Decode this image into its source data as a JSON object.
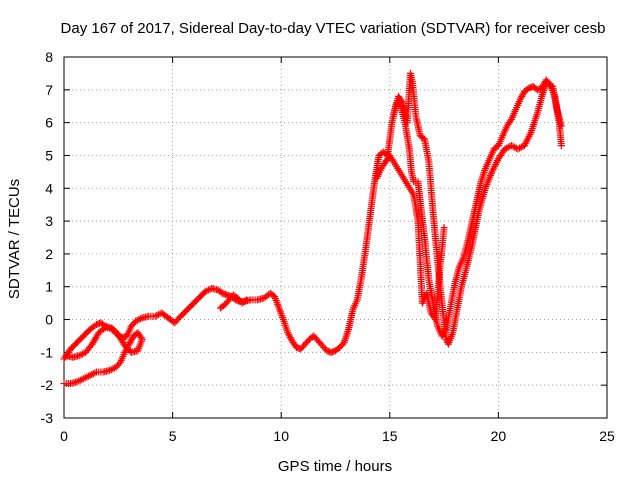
{
  "chart_data": {
    "type": "scatter",
    "title": "Day 167 of 2017, Sidereal Day-to-day VTEC variation (SDTVAR) for receiver cesb",
    "xlabel": "GPS time / hours",
    "ylabel": "SDTVAR / TECUs",
    "xlim": [
      0,
      25
    ],
    "ylim": [
      -3,
      8
    ],
    "xticks": [
      "0",
      "5",
      "10",
      "15",
      "20",
      "25"
    ],
    "yticks": [
      "-3",
      "-2",
      "-1",
      "0",
      "1",
      "2",
      "3",
      "4",
      "5",
      "6",
      "7",
      "8"
    ],
    "grid": true,
    "marker": "+",
    "color": "#ff0000",
    "series": [
      {
        "points": [
          [
            0.0,
            -1.2
          ],
          [
            0.3,
            -0.9
          ],
          [
            0.6,
            -0.7
          ],
          [
            0.9,
            -0.5
          ],
          [
            1.2,
            -0.3
          ],
          [
            1.5,
            -0.15
          ],
          [
            1.7,
            -0.1
          ],
          [
            1.9,
            -0.2
          ],
          [
            2.1,
            -0.25
          ],
          [
            2.3,
            -0.35
          ],
          [
            2.5,
            -0.5
          ],
          [
            2.7,
            -0.55
          ],
          [
            2.9,
            -0.5
          ],
          [
            3.1,
            -0.2
          ],
          [
            3.3,
            -0.05
          ],
          [
            3.6,
            0.05
          ],
          [
            3.9,
            0.1
          ],
          [
            4.2,
            0.1
          ],
          [
            4.5,
            0.2
          ],
          [
            4.7,
            0.1
          ],
          [
            4.9,
            0.0
          ],
          [
            5.1,
            -0.1
          ],
          [
            5.3,
            0.05
          ],
          [
            5.6,
            0.25
          ],
          [
            5.9,
            0.45
          ],
          [
            6.2,
            0.65
          ],
          [
            6.5,
            0.85
          ],
          [
            6.8,
            0.95
          ],
          [
            7.1,
            0.9
          ],
          [
            7.3,
            0.8
          ],
          [
            7.5,
            0.75
          ],
          [
            7.7,
            0.7
          ],
          [
            7.9,
            0.6
          ],
          [
            8.1,
            0.55
          ],
          [
            8.3,
            0.55
          ],
          [
            8.6,
            0.6
          ],
          [
            8.9,
            0.6
          ],
          [
            9.2,
            0.65
          ],
          [
            9.5,
            0.8
          ],
          [
            9.7,
            0.7
          ],
          [
            9.9,
            0.35
          ],
          [
            10.1,
            0.0
          ],
          [
            10.3,
            -0.4
          ],
          [
            10.5,
            -0.65
          ],
          [
            10.7,
            -0.85
          ],
          [
            10.9,
            -0.9
          ],
          [
            11.1,
            -0.75
          ],
          [
            11.3,
            -0.6
          ],
          [
            11.5,
            -0.5
          ],
          [
            11.7,
            -0.65
          ],
          [
            11.9,
            -0.8
          ],
          [
            12.1,
            -0.95
          ],
          [
            12.3,
            -1.0
          ],
          [
            12.5,
            -0.95
          ],
          [
            12.7,
            -0.85
          ],
          [
            12.9,
            -0.7
          ],
          [
            13.1,
            -0.3
          ],
          [
            13.3,
            0.3
          ],
          [
            13.5,
            0.6
          ],
          [
            13.7,
            1.3
          ],
          [
            13.9,
            2.2
          ],
          [
            14.1,
            3.2
          ],
          [
            14.3,
            4.2
          ],
          [
            14.5,
            5.0
          ],
          [
            14.7,
            5.1
          ],
          [
            14.9,
            5.0
          ],
          [
            15.1,
            6.0
          ],
          [
            15.3,
            6.6
          ],
          [
            15.5,
            6.5
          ],
          [
            15.7,
            6.0
          ],
          [
            15.9,
            5.2
          ],
          [
            16.0,
            4.5
          ],
          [
            16.1,
            4.2
          ],
          [
            16.3,
            4.2
          ],
          [
            16.4,
            3.6
          ],
          [
            16.6,
            2.5
          ],
          [
            16.8,
            1.2
          ],
          [
            17.0,
            0.5
          ],
          [
            17.2,
            -0.2
          ],
          [
            17.4,
            -0.5
          ],
          [
            17.6,
            -0.3
          ],
          [
            17.8,
            0.4
          ],
          [
            18.0,
            1.1
          ],
          [
            18.2,
            1.6
          ],
          [
            18.4,
            1.9
          ],
          [
            18.6,
            2.4
          ],
          [
            18.8,
            3.0
          ],
          [
            19.0,
            3.6
          ],
          [
            19.2,
            4.2
          ],
          [
            19.4,
            4.6
          ],
          [
            19.6,
            4.9
          ],
          [
            19.8,
            5.2
          ],
          [
            20.0,
            5.3
          ],
          [
            20.2,
            5.6
          ],
          [
            20.4,
            5.9
          ],
          [
            20.6,
            6.1
          ],
          [
            20.8,
            6.4
          ],
          [
            21.0,
            6.7
          ],
          [
            21.2,
            6.95
          ],
          [
            21.4,
            7.05
          ],
          [
            21.6,
            7.1
          ],
          [
            21.8,
            7.0
          ],
          [
            22.0,
            7.05
          ],
          [
            22.2,
            7.3
          ],
          [
            22.4,
            7.15
          ],
          [
            22.6,
            6.8
          ],
          [
            22.8,
            6.0
          ],
          [
            22.9,
            5.3
          ]
        ]
      },
      {
        "points": [
          [
            0.0,
            -1.95
          ],
          [
            0.3,
            -1.95
          ],
          [
            0.6,
            -1.9
          ],
          [
            0.9,
            -1.8
          ],
          [
            1.2,
            -1.7
          ],
          [
            1.5,
            -1.6
          ],
          [
            1.8,
            -1.6
          ],
          [
            2.1,
            -1.55
          ],
          [
            2.4,
            -1.45
          ],
          [
            2.6,
            -1.3
          ],
          [
            2.8,
            -1.0
          ],
          [
            3.0,
            -0.75
          ],
          [
            3.2,
            -0.5
          ],
          [
            3.4,
            -0.4
          ],
          [
            3.6,
            -0.6
          ],
          [
            3.4,
            -0.95
          ],
          [
            3.1,
            -1.0
          ],
          [
            2.8,
            -0.8
          ],
          [
            2.5,
            -0.45
          ],
          [
            2.2,
            -0.25
          ],
          [
            1.9,
            -0.25
          ],
          [
            1.6,
            -0.4
          ],
          [
            1.3,
            -0.75
          ],
          [
            1.0,
            -1.0
          ],
          [
            0.7,
            -1.1
          ],
          [
            0.4,
            -1.15
          ],
          [
            0.1,
            -1.1
          ]
        ]
      },
      {
        "points": [
          [
            7.2,
            0.35
          ],
          [
            7.4,
            0.45
          ],
          [
            7.6,
            0.6
          ],
          [
            7.8,
            0.75
          ],
          [
            8.0,
            0.65
          ],
          [
            8.2,
            0.5
          ],
          [
            8.4,
            0.6
          ]
        ]
      },
      {
        "points": [
          [
            15.2,
            6.3
          ],
          [
            15.4,
            6.8
          ],
          [
            15.6,
            6.6
          ],
          [
            15.8,
            6.0
          ],
          [
            15.95,
            7.5
          ],
          [
            16.05,
            7.2
          ],
          [
            16.2,
            6.2
          ],
          [
            16.4,
            5.6
          ],
          [
            16.6,
            5.5
          ],
          [
            16.8,
            4.8
          ],
          [
            17.0,
            3.2
          ],
          [
            17.2,
            1.8
          ],
          [
            17.4,
            0.5
          ],
          [
            17.6,
            -0.6
          ],
          [
            17.7,
            -0.75
          ],
          [
            17.9,
            -0.4
          ],
          [
            18.1,
            0.3
          ],
          [
            18.3,
            1.0
          ],
          [
            18.5,
            1.5
          ],
          [
            18.8,
            2.3
          ],
          [
            19.1,
            3.3
          ],
          [
            19.4,
            4.0
          ],
          [
            19.7,
            4.5
          ],
          [
            20.0,
            4.9
          ],
          [
            20.3,
            5.2
          ],
          [
            20.6,
            5.3
          ],
          [
            20.9,
            5.2
          ],
          [
            21.2,
            5.3
          ],
          [
            21.5,
            5.7
          ],
          [
            21.8,
            6.3
          ],
          [
            22.0,
            6.8
          ],
          [
            22.2,
            7.2
          ],
          [
            22.5,
            7.1
          ],
          [
            22.7,
            6.4
          ],
          [
            22.9,
            5.9
          ]
        ]
      },
      {
        "points": [
          [
            14.4,
            4.3
          ],
          [
            14.6,
            4.6
          ],
          [
            14.8,
            4.8
          ],
          [
            15.0,
            5.0
          ],
          [
            16.1,
            3.8
          ],
          [
            16.3,
            3.0
          ],
          [
            16.5,
            0.5
          ],
          [
            16.7,
            0.8
          ],
          [
            16.9,
            0.2
          ],
          [
            17.1,
            0.0
          ],
          [
            17.3,
            1.5
          ],
          [
            17.5,
            2.8
          ]
        ]
      }
    ]
  }
}
